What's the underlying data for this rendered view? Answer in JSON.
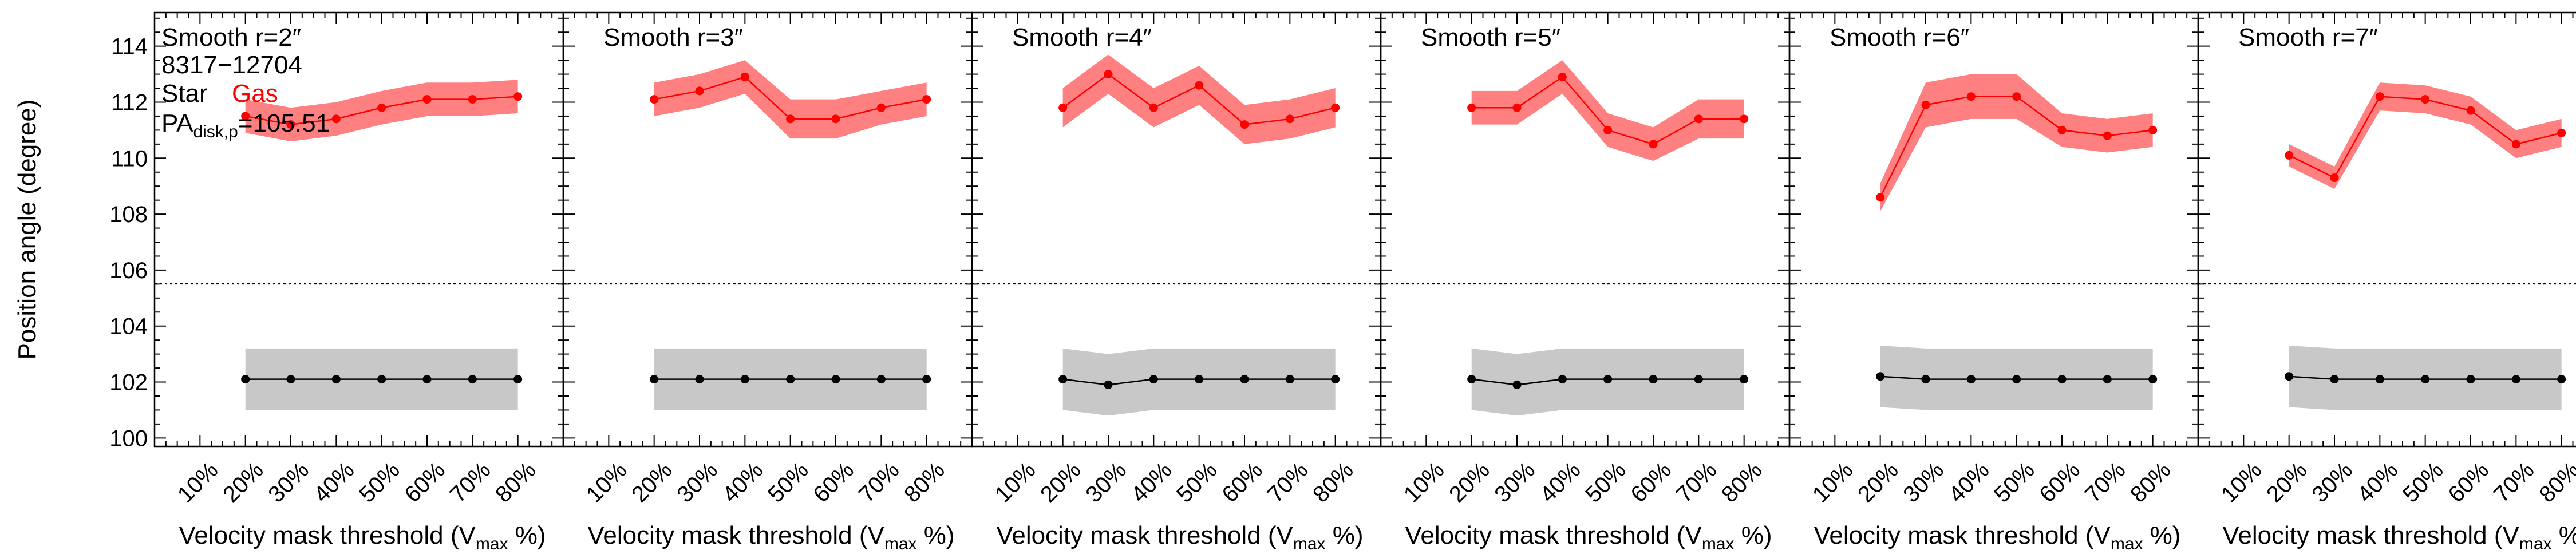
{
  "chart_data": {
    "type": "line",
    "ylabel": "Position angle (degree)",
    "xlabel": "Velocity mask threshold (V",
    "xlabel_sub": "max",
    "xlabel_tail": " %)",
    "x_ticks": [
      "10%",
      "20%",
      "30%",
      "40%",
      "50%",
      "60%",
      "70%",
      "80%"
    ],
    "x_values": [
      20,
      30,
      40,
      50,
      60,
      70,
      80
    ],
    "xlim": [
      0,
      90
    ],
    "ylim": [
      99.7,
      115.2
    ],
    "y_ticks": [
      100,
      102,
      104,
      106,
      108,
      110,
      112,
      114
    ],
    "reference_line": {
      "value": 105.51
    },
    "colors": {
      "gas": "#ff0000",
      "gas_band": "#ff8080",
      "star": "#000000",
      "star_band": "#c8c8c8"
    },
    "legend": {
      "id": "8317−12704",
      "star_label": "Star",
      "gas_label": "Gas",
      "pa_prefix": "PA",
      "pa_sub": "disk,p",
      "pa_value": "=105.51"
    },
    "panels": [
      {
        "title": "Smooth r=2″",
        "gas": [
          111.5,
          111.2,
          111.4,
          111.8,
          112.1,
          112.1,
          112.2
        ],
        "gas_err": [
          0.6,
          0.6,
          0.6,
          0.6,
          0.6,
          0.6,
          0.6
        ],
        "star": [
          102.1,
          102.1,
          102.1,
          102.1,
          102.1,
          102.1,
          102.1
        ],
        "star_err": [
          1.1,
          1.1,
          1.1,
          1.1,
          1.1,
          1.1,
          1.1
        ]
      },
      {
        "title": "Smooth r=3″",
        "gas": [
          112.1,
          112.4,
          112.9,
          111.4,
          111.4,
          111.8,
          112.1
        ],
        "gas_err": [
          0.6,
          0.6,
          0.6,
          0.7,
          0.7,
          0.6,
          0.6
        ],
        "star": [
          102.1,
          102.1,
          102.1,
          102.1,
          102.1,
          102.1,
          102.1
        ],
        "star_err": [
          1.1,
          1.1,
          1.1,
          1.1,
          1.1,
          1.1,
          1.1
        ]
      },
      {
        "title": "Smooth r=4″",
        "gas": [
          111.8,
          113.0,
          111.8,
          112.6,
          111.2,
          111.4,
          111.8
        ],
        "gas_err": [
          0.7,
          0.7,
          0.7,
          0.7,
          0.7,
          0.7,
          0.7
        ],
        "star": [
          102.1,
          101.9,
          102.1,
          102.1,
          102.1,
          102.1,
          102.1
        ],
        "star_err": [
          1.1,
          1.1,
          1.1,
          1.1,
          1.1,
          1.1,
          1.1
        ]
      },
      {
        "title": "Smooth r=5″",
        "gas": [
          111.8,
          111.8,
          112.9,
          111.0,
          110.5,
          111.4,
          111.4
        ],
        "gas_err": [
          0.6,
          0.6,
          0.6,
          0.6,
          0.6,
          0.7,
          0.7
        ],
        "star": [
          102.1,
          101.9,
          102.1,
          102.1,
          102.1,
          102.1,
          102.1
        ],
        "star_err": [
          1.1,
          1.1,
          1.1,
          1.1,
          1.1,
          1.1,
          1.1
        ]
      },
      {
        "title": "Smooth r=6″",
        "gas": [
          108.6,
          111.9,
          112.2,
          112.2,
          111.0,
          110.8,
          111.0
        ],
        "gas_err": [
          0.5,
          0.8,
          0.8,
          0.8,
          0.6,
          0.6,
          0.6
        ],
        "star": [
          102.2,
          102.1,
          102.1,
          102.1,
          102.1,
          102.1,
          102.1
        ],
        "star_err": [
          1.1,
          1.1,
          1.1,
          1.1,
          1.1,
          1.1,
          1.1
        ]
      },
      {
        "title": "Smooth r=7″",
        "gas": [
          110.1,
          109.3,
          112.2,
          112.1,
          111.7,
          110.5,
          110.9
        ],
        "gas_err": [
          0.4,
          0.4,
          0.5,
          0.5,
          0.5,
          0.5,
          0.5
        ],
        "star": [
          102.2,
          102.1,
          102.1,
          102.1,
          102.1,
          102.1,
          102.1
        ],
        "star_err": [
          1.1,
          1.1,
          1.1,
          1.1,
          1.1,
          1.1,
          1.1
        ]
      }
    ]
  }
}
